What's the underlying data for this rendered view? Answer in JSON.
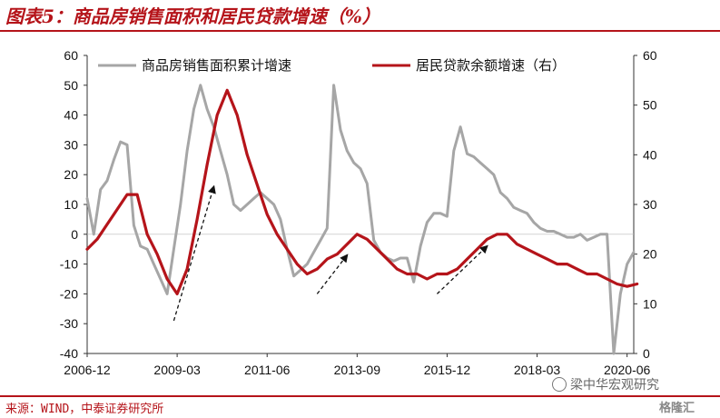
{
  "header": {
    "title": "图表5：商品房销售面积和居民贷款增速（%）"
  },
  "footer": {
    "source": "来源：WIND，中泰证券研究所",
    "watermark": "梁中华宏观研究",
    "watermark2": "格隆汇"
  },
  "colors": {
    "accent": "#b5141a",
    "series_gray": "#a6a6a6",
    "series_red": "#b5141a"
  },
  "chart_data": {
    "type": "line",
    "x_ticks": [
      "2006-12",
      "2009-03",
      "2011-06",
      "2013-09",
      "2015-12",
      "2018-03",
      "2020-06"
    ],
    "y_left_ticks": [
      "60",
      "50",
      "40",
      "30",
      "20",
      "10",
      "0",
      "-10",
      "-20",
      "-30",
      "-40"
    ],
    "y_right_ticks": [
      "60",
      "50",
      "40",
      "30",
      "20",
      "10",
      "0"
    ],
    "ylim_left": [
      -40,
      60
    ],
    "ylim_right": [
      0,
      60
    ],
    "grid": false,
    "legend_position": "top",
    "series": [
      {
        "name": "商品房销售面积累计增速",
        "axis": "left",
        "color": "#a6a6a6",
        "points": [
          [
            "2006-12",
            12
          ],
          [
            "2007-02",
            0
          ],
          [
            "2007-04",
            15
          ],
          [
            "2007-06",
            18
          ],
          [
            "2007-08",
            25
          ],
          [
            "2007-10",
            31
          ],
          [
            "2007-12",
            30
          ],
          [
            "2008-02",
            3
          ],
          [
            "2008-04",
            -4
          ],
          [
            "2008-06",
            -5
          ],
          [
            "2008-08",
            -10
          ],
          [
            "2008-10",
            -15
          ],
          [
            "2008-12",
            -20
          ],
          [
            "2009-02",
            -5
          ],
          [
            "2009-04",
            10
          ],
          [
            "2009-06",
            28
          ],
          [
            "2009-08",
            42
          ],
          [
            "2009-10",
            50
          ],
          [
            "2009-12",
            42
          ],
          [
            "2010-02",
            36
          ],
          [
            "2010-04",
            28
          ],
          [
            "2010-06",
            20
          ],
          [
            "2010-08",
            10
          ],
          [
            "2010-10",
            8
          ],
          [
            "2010-12",
            10
          ],
          [
            "2011-02",
            12
          ],
          [
            "2011-04",
            14
          ],
          [
            "2011-06",
            12
          ],
          [
            "2011-08",
            10
          ],
          [
            "2011-10",
            5
          ],
          [
            "2011-12",
            -5
          ],
          [
            "2012-02",
            -14
          ],
          [
            "2012-04",
            -12
          ],
          [
            "2012-06",
            -10
          ],
          [
            "2012-08",
            -6
          ],
          [
            "2012-10",
            -2
          ],
          [
            "2012-12",
            2
          ],
          [
            "2013-02",
            50
          ],
          [
            "2013-04",
            35
          ],
          [
            "2013-06",
            28
          ],
          [
            "2013-08",
            24
          ],
          [
            "2013-10",
            22
          ],
          [
            "2013-12",
            17
          ],
          [
            "2014-02",
            -2
          ],
          [
            "2014-04",
            -6
          ],
          [
            "2014-06",
            -8
          ],
          [
            "2014-08",
            -9
          ],
          [
            "2014-10",
            -8
          ],
          [
            "2014-12",
            -8
          ],
          [
            "2015-02",
            -16
          ],
          [
            "2015-04",
            -4
          ],
          [
            "2015-06",
            4
          ],
          [
            "2015-08",
            7
          ],
          [
            "2015-10",
            7
          ],
          [
            "2015-12",
            6
          ],
          [
            "2016-02",
            28
          ],
          [
            "2016-04",
            36
          ],
          [
            "2016-06",
            27
          ],
          [
            "2016-08",
            26
          ],
          [
            "2016-10",
            24
          ],
          [
            "2016-12",
            22
          ],
          [
            "2017-02",
            20
          ],
          [
            "2017-04",
            14
          ],
          [
            "2017-06",
            12
          ],
          [
            "2017-08",
            9
          ],
          [
            "2017-10",
            8
          ],
          [
            "2017-12",
            7
          ],
          [
            "2018-02",
            4
          ],
          [
            "2018-04",
            2
          ],
          [
            "2018-06",
            1
          ],
          [
            "2018-08",
            1
          ],
          [
            "2018-10",
            0
          ],
          [
            "2018-12",
            -1
          ],
          [
            "2019-02",
            -1
          ],
          [
            "2019-04",
            0
          ],
          [
            "2019-06",
            -2
          ],
          [
            "2019-08",
            -1
          ],
          [
            "2019-10",
            0
          ],
          [
            "2019-12",
            0
          ],
          [
            "2020-02",
            -40
          ],
          [
            "2020-04",
            -20
          ],
          [
            "2020-06",
            -10
          ],
          [
            "2020-08",
            -6
          ]
        ]
      },
      {
        "name": "居民贷款余额增速（右）",
        "axis": "right",
        "color": "#b5141a",
        "points": [
          [
            "2006-12",
            21
          ],
          [
            "2007-03",
            23
          ],
          [
            "2007-06",
            26
          ],
          [
            "2007-09",
            29
          ],
          [
            "2007-12",
            32
          ],
          [
            "2008-03",
            32
          ],
          [
            "2008-06",
            24
          ],
          [
            "2008-09",
            20
          ],
          [
            "2008-12",
            15
          ],
          [
            "2009-03",
            12
          ],
          [
            "2009-06",
            17
          ],
          [
            "2009-09",
            27
          ],
          [
            "2009-12",
            38
          ],
          [
            "2010-03",
            48
          ],
          [
            "2010-06",
            53
          ],
          [
            "2010-09",
            48
          ],
          [
            "2010-12",
            40
          ],
          [
            "2011-03",
            34
          ],
          [
            "2011-06",
            28
          ],
          [
            "2011-09",
            24
          ],
          [
            "2011-12",
            21
          ],
          [
            "2012-03",
            18
          ],
          [
            "2012-06",
            16
          ],
          [
            "2012-09",
            17
          ],
          [
            "2012-12",
            19
          ],
          [
            "2013-03",
            20
          ],
          [
            "2013-06",
            22
          ],
          [
            "2013-09",
            24
          ],
          [
            "2013-12",
            23
          ],
          [
            "2014-03",
            21
          ],
          [
            "2014-06",
            19
          ],
          [
            "2014-09",
            17
          ],
          [
            "2014-12",
            16
          ],
          [
            "2015-03",
            16
          ],
          [
            "2015-06",
            15
          ],
          [
            "2015-09",
            16
          ],
          [
            "2015-12",
            16
          ],
          [
            "2016-03",
            17
          ],
          [
            "2016-06",
            19
          ],
          [
            "2016-09",
            21
          ],
          [
            "2016-12",
            23
          ],
          [
            "2017-03",
            24
          ],
          [
            "2017-06",
            24
          ],
          [
            "2017-09",
            22
          ],
          [
            "2017-12",
            21
          ],
          [
            "2018-03",
            20
          ],
          [
            "2018-06",
            19
          ],
          [
            "2018-09",
            18
          ],
          [
            "2018-12",
            18
          ],
          [
            "2019-03",
            17
          ],
          [
            "2019-06",
            16
          ],
          [
            "2019-09",
            16
          ],
          [
            "2019-12",
            15
          ],
          [
            "2020-03",
            14
          ],
          [
            "2020-06",
            13.5
          ],
          [
            "2020-09",
            14
          ]
        ]
      }
    ]
  }
}
